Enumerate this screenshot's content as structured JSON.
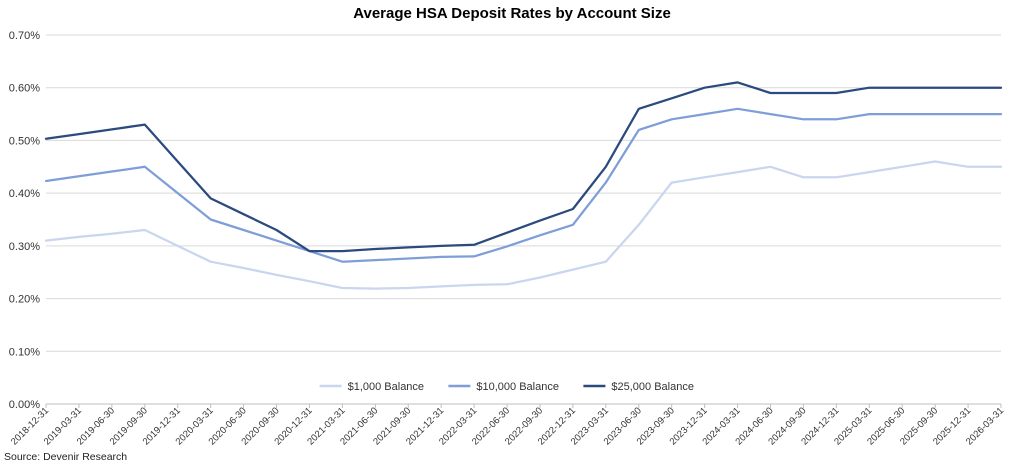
{
  "chart_data": {
    "type": "line",
    "title": "Average HSA Deposit Rates by Account Size",
    "xlabel": "",
    "ylabel": "",
    "ylim": [
      0,
      0.007
    ],
    "yticks": [
      "0.00%",
      "0.10%",
      "0.20%",
      "0.30%",
      "0.40%",
      "0.50%",
      "0.60%",
      "0.70%"
    ],
    "grid": true,
    "legend_position": "bottom-center",
    "categories": [
      "2018-12-31",
      "2019-03-31",
      "2019-06-30",
      "2019-09-30",
      "2019-12-31",
      "2020-03-31",
      "2020-06-30",
      "2020-09-30",
      "2020-12-31",
      "2021-03-31",
      "2021-06-30",
      "2021-09-30",
      "2021-12-31",
      "2022-03-31",
      "2022-06-30",
      "2022-09-30",
      "2022-12-31",
      "2023-03-31",
      "2023-06-30",
      "2023-09-30",
      "2023-12-31",
      "2024-03-31",
      "2024-06-30",
      "2024-09-30",
      "2024-12-31",
      "2025-03-31",
      "2025-06-30",
      "2025-09-30",
      "2025-12-31",
      "2026-03-31"
    ],
    "series": [
      {
        "name": "$1,000 Balance",
        "color": "#c9d6ee",
        "values": [
          0.0031,
          0.00317,
          0.00323,
          0.0033,
          0.003,
          0.0027,
          0.00258,
          0.00245,
          0.00233,
          0.0022,
          0.00219,
          0.0022,
          0.00223,
          0.00226,
          0.00227,
          0.0024,
          0.00255,
          0.0027,
          0.0034,
          0.0042,
          0.0043,
          0.0044,
          0.0045,
          0.0043,
          0.0043,
          0.0044,
          0.0045,
          0.0046,
          0.0045,
          0.0045
        ]
      },
      {
        "name": "$10,000 Balance",
        "color": "#7f9ed8",
        "values": [
          0.00423,
          0.00432,
          0.00441,
          0.0045,
          0.004,
          0.0035,
          0.0033,
          0.0031,
          0.0029,
          0.0027,
          0.00273,
          0.00276,
          0.00279,
          0.0028,
          0.00299,
          0.0032,
          0.0034,
          0.0042,
          0.0052,
          0.0054,
          0.0055,
          0.0056,
          0.0055,
          0.0054,
          0.0054,
          0.0055,
          0.0055,
          0.0055,
          0.0055,
          0.0055
        ]
      },
      {
        "name": "$25,000 Balance",
        "color": "#2b4a7e",
        "values": [
          0.00503,
          0.00512,
          0.00521,
          0.0053,
          0.0046,
          0.0039,
          0.0036,
          0.0033,
          0.0029,
          0.0029,
          0.00294,
          0.00297,
          0.003,
          0.00302,
          0.00325,
          0.00348,
          0.0037,
          0.0045,
          0.0056,
          0.0058,
          0.006,
          0.0061,
          0.0059,
          0.0059,
          0.0059,
          0.006,
          0.006,
          0.006,
          0.006,
          0.006
        ]
      }
    ]
  },
  "source_text": "Source: Devenir Research"
}
